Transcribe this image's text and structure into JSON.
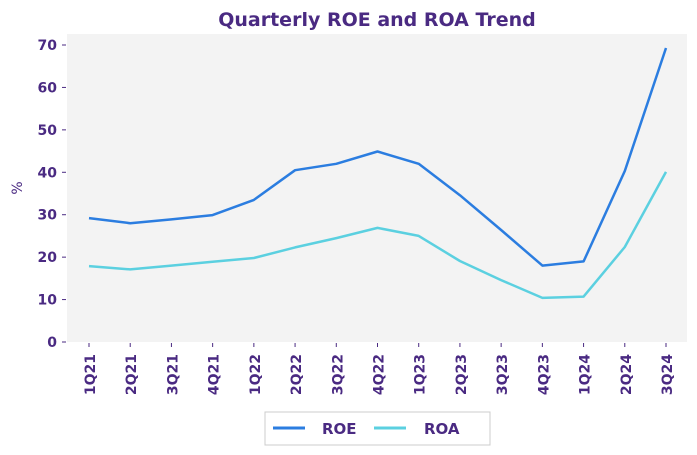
{
  "chart_data": {
    "type": "line",
    "title": "Quarterly ROE and ROA Trend",
    "xlabel": "",
    "ylabel": "%",
    "ylim": [
      0,
      70
    ],
    "yticks": [
      0,
      10,
      20,
      30,
      40,
      50,
      60,
      70
    ],
    "grid": false,
    "legend_position": "bottom-center",
    "categories": [
      "1Q21",
      "2Q21",
      "3Q21",
      "4Q21",
      "1Q22",
      "2Q22",
      "3Q22",
      "4Q22",
      "1Q23",
      "2Q23",
      "3Q23",
      "4Q23",
      "1Q24",
      "2Q24",
      "3Q24"
    ],
    "series": [
      {
        "name": "ROE",
        "color": "#2b7de0",
        "values": [
          29.2,
          28.0,
          28.9,
          29.9,
          33.5,
          40.5,
          42.0,
          44.9,
          42.0,
          34.6,
          26.4,
          18.0,
          19.0,
          40.3,
          69.3
        ]
      },
      {
        "name": "ROA",
        "color": "#5bd0e0",
        "values": [
          17.9,
          17.1,
          18.0,
          18.9,
          19.8,
          22.3,
          24.5,
          26.9,
          25.0,
          19.1,
          14.6,
          10.4,
          10.7,
          22.4,
          40.1
        ]
      }
    ]
  },
  "colors": {
    "text": "#4a2a82",
    "plot_background": "#f3f3f3",
    "legend_border": "#cccccc"
  }
}
